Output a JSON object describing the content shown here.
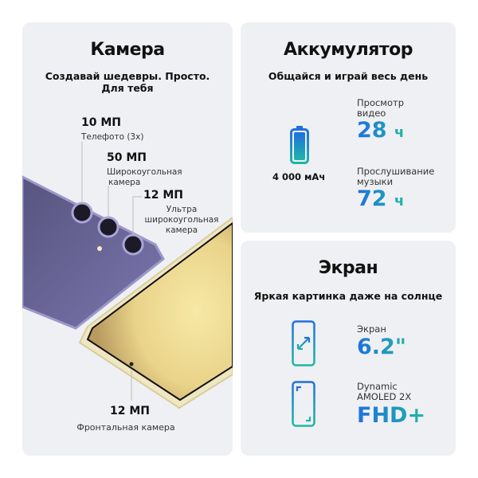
{
  "camera": {
    "title": "Камера",
    "subtitle_line1": "Создавай шедевры. Просто.",
    "subtitle_line2": "Для тебя",
    "tele": {
      "mp": "10 МП",
      "caption": "Телефото (3x)"
    },
    "wide": {
      "mp": "50 МП",
      "caption_line1": "Широкоугольная",
      "caption_line2": "камера"
    },
    "ultra": {
      "mp": "12 МП",
      "caption_line1": "Ультра",
      "caption_line2": "широкоугольная",
      "caption_line3": "камера"
    },
    "front": {
      "mp": "12 МП",
      "caption": "Фронтальная камера"
    },
    "colors": {
      "purple_phone": "#6e6ba0",
      "cream_phone": "#efe6c2"
    }
  },
  "battery": {
    "title": "Аккумулятор",
    "subtitle": "Общайся и играй весь день",
    "capacity": "4 000 мАч",
    "icon": "battery-icon",
    "video": {
      "label_line1": "Просмотр",
      "label_line2": "видео",
      "value": "28",
      "unit": "ч"
    },
    "music": {
      "label_line1": "Прослушивание",
      "label_line2": "музыки",
      "value": "72",
      "unit": "ч"
    }
  },
  "screen": {
    "title": "Экран",
    "subtitle": "Яркая картинка даже на солнце",
    "size": {
      "label": "Экран",
      "value": "6.2\"",
      "icon": "screen-size-icon"
    },
    "type": {
      "label_line1": "Dynamic",
      "label_line2": "AMOLED 2X",
      "value": "FHD+",
      "icon": "screen-resolution-icon"
    }
  },
  "accent_gradient": [
    "#1f6fe0",
    "#1fb6a6"
  ]
}
